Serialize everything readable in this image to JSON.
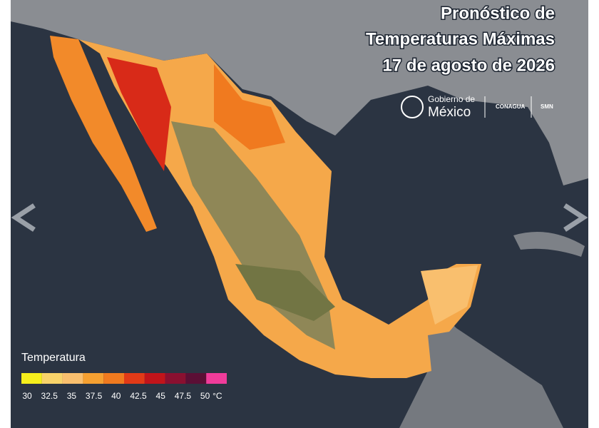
{
  "header": {
    "title_lines": [
      "Pronóstico de",
      "Temperaturas Máximas",
      "17 de agosto de 2026"
    ]
  },
  "logos": {
    "gobierno_line1": "Gobierno de",
    "gobierno_line2": "México",
    "conagua": "CONAGUA",
    "smn": "SMN"
  },
  "legend": {
    "title": "Temperatura",
    "unit": "°C",
    "ticks": [
      30,
      32.5,
      35,
      37.5,
      40,
      42.5,
      45,
      47.5,
      50
    ],
    "colors": [
      "#f5ee1c",
      "#f8d36a",
      "#f9bf6e",
      "#f5a031",
      "#f07a1f",
      "#e23a17",
      "#c1141a",
      "#8a1030",
      "#5b0f35",
      "#f03c9a"
    ]
  }
}
